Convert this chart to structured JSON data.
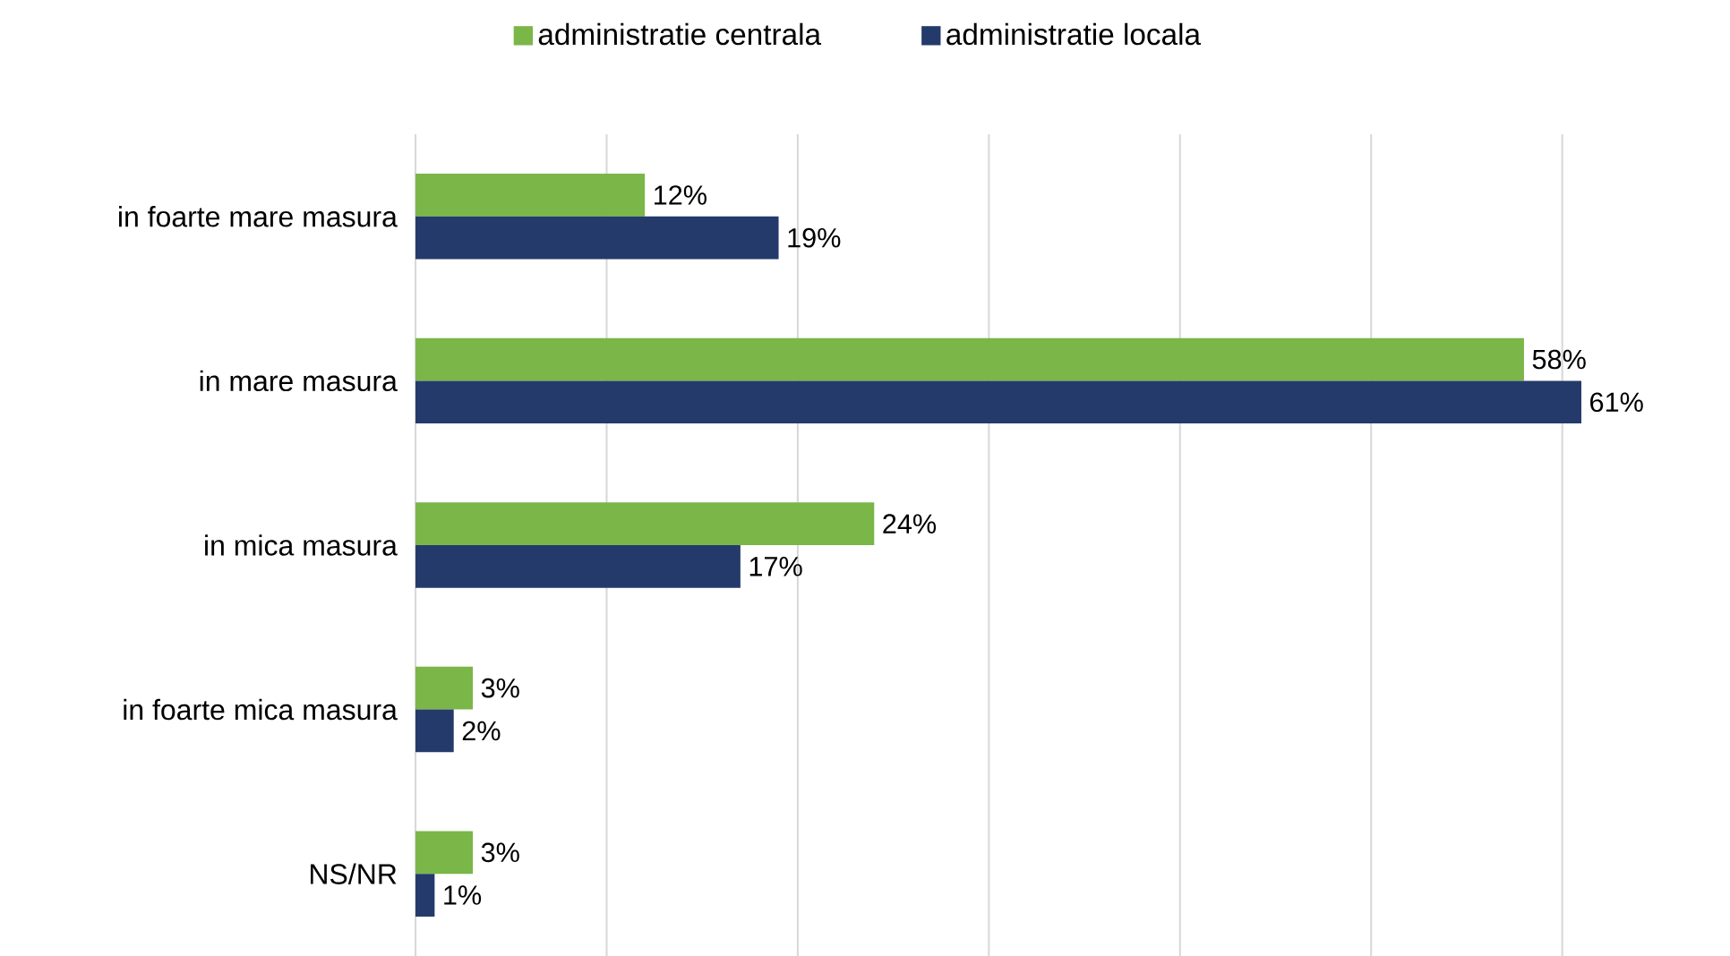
{
  "chart_data": {
    "type": "bar",
    "orientation": "horizontal",
    "categories": [
      "in foarte mare masura",
      "in mare masura",
      "in mica masura",
      "in foarte mica masura",
      "NS/NR"
    ],
    "series": [
      {
        "name": "administratie centrala",
        "color": "#7ab648",
        "values": [
          12,
          58,
          24,
          3,
          3
        ],
        "value_labels": [
          "12%",
          "58%",
          "24%",
          "3%",
          "3%"
        ]
      },
      {
        "name": "administratie locala",
        "color": "#243a6b",
        "values": [
          19,
          61,
          17,
          2,
          1
        ],
        "value_labels": [
          "19%",
          "61%",
          "17%",
          "2%",
          "1%"
        ]
      }
    ],
    "xticks": [
      {
        "value": 0,
        "label": null
      },
      {
        "value": 10,
        "label": null
      },
      {
        "value": 20,
        "label": null
      },
      {
        "value": 30,
        "label": null
      },
      {
        "value": 40,
        "label": null
      },
      {
        "value": 50,
        "label": null
      },
      {
        "value": 60,
        "label": null
      }
    ],
    "grid": "x",
    "legend": "top",
    "tick_labels": "y"
  }
}
